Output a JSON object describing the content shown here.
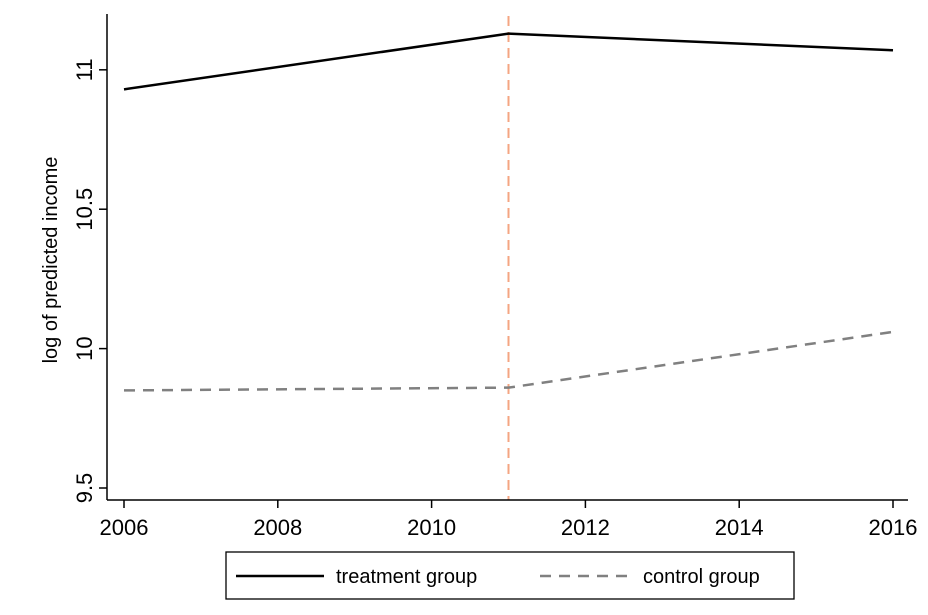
{
  "chart_data": {
    "type": "line",
    "x": [
      2006,
      2011,
      2016
    ],
    "series": [
      {
        "name": "treatment group",
        "values": [
          10.93,
          11.13,
          11.07
        ],
        "color": "#000000",
        "style": "solid"
      },
      {
        "name": "control group",
        "values": [
          9.85,
          9.86,
          10.06
        ],
        "color": "#808080",
        "style": "dashed"
      }
    ],
    "reference_line": {
      "x": 2011,
      "color": "#f4a582",
      "style": "dashed"
    },
    "ylabel": "log of predicted income",
    "xlabel": "",
    "xlim": [
      2006,
      2016
    ],
    "ylim": [
      9.5,
      11.15
    ],
    "xticks": [
      2006,
      2008,
      2010,
      2012,
      2014,
      2016
    ],
    "yticks": [
      9.5,
      10,
      10.5,
      11
    ],
    "xtick_labels": [
      "2006",
      "2008",
      "2010",
      "2012",
      "2014",
      "2016"
    ],
    "ytick_labels": [
      "9.5",
      "10",
      "10.5",
      "11"
    ],
    "grid": false,
    "legend_position": "bottom"
  }
}
